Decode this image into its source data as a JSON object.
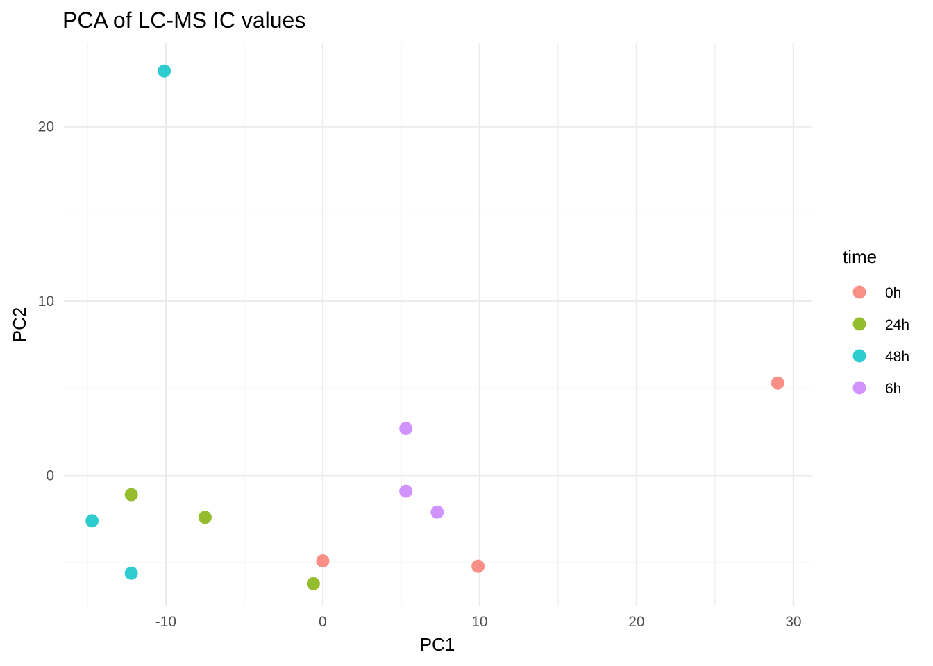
{
  "chart_data": {
    "type": "scatter",
    "title": "PCA of LC-MS IC values",
    "xlabel": "PC1",
    "ylabel": "PC2",
    "xlim": [
      -16.5,
      31.2
    ],
    "ylim": [
      -7.5,
      24.8
    ],
    "x_ticks": [
      -10,
      0,
      10,
      20,
      30
    ],
    "y_ticks": [
      0,
      10,
      20
    ],
    "x_tick_labels": [
      "-10",
      "0",
      "10",
      "20",
      "30"
    ],
    "y_tick_labels": [
      "0",
      "10",
      "20"
    ],
    "grid": true,
    "legend": {
      "title": "time",
      "position": "right",
      "entries": [
        "0h",
        "24h",
        "48h",
        "6h"
      ]
    },
    "series": [
      {
        "name": "0h",
        "color": "#F8766D",
        "points": [
          [
            0.0,
            -4.9
          ],
          [
            9.9,
            -5.2
          ],
          [
            29.0,
            5.3
          ]
        ]
      },
      {
        "name": "24h",
        "color": "#7CAE00",
        "points": [
          [
            -12.2,
            -1.1
          ],
          [
            -7.5,
            -2.4
          ],
          [
            -0.6,
            -6.2
          ]
        ]
      },
      {
        "name": "48h",
        "color": "#00BFC4",
        "points": [
          [
            -10.1,
            23.2
          ],
          [
            -14.7,
            -2.6
          ],
          [
            -12.2,
            -5.6
          ]
        ]
      },
      {
        "name": "6h",
        "color": "#C77CFF",
        "points": [
          [
            5.3,
            2.7
          ],
          [
            5.3,
            -0.9
          ],
          [
            7.3,
            -2.1
          ]
        ]
      }
    ]
  }
}
